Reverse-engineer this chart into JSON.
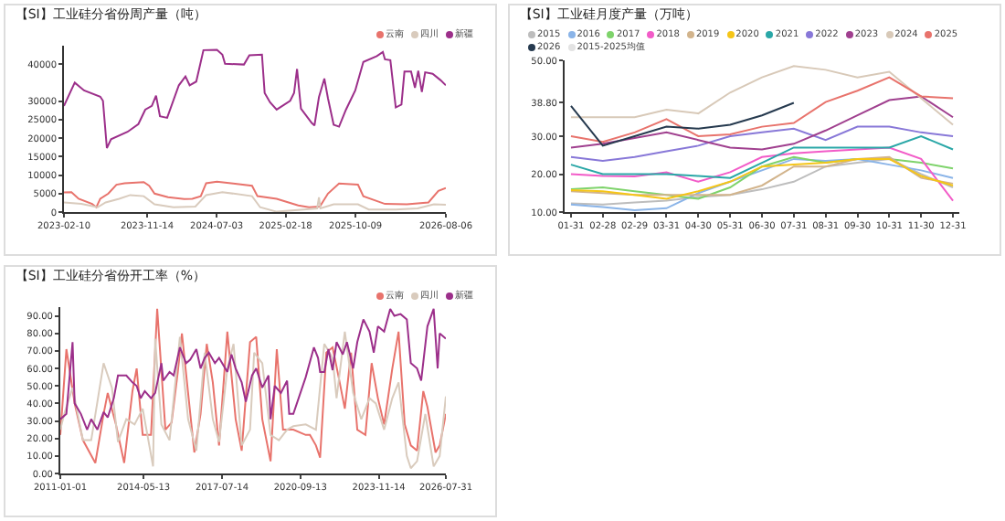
{
  "chart_data": [
    {
      "type": "line",
      "title": "【SI】工业硅分省份周产量（吨）",
      "legend": "top right",
      "xlim": [
        "2023-02-10",
        "2026-08-06"
      ],
      "xticks": [
        {
          "value": "2023-02-10",
          "label": "2023-02-10"
        },
        {
          "value": "2023-11-14",
          "label": "2023-11-14"
        },
        {
          "value": "2024-07-03",
          "label": "2024-07-03"
        },
        {
          "value": "2025-02-18",
          "label": "2025-02-18"
        },
        {
          "value": "2025-10-09",
          "label": "2025-10-09"
        },
        {
          "value": "2026-08-06",
          "label": "2026-08-06"
        }
      ],
      "ylim": [
        0,
        45000
      ],
      "yticks": [
        0,
        5000,
        10000,
        15000,
        20000,
        25000,
        30000,
        40000
      ],
      "series": [
        {
          "name": "云南",
          "color": "#e8736c",
          "x": [
            "2023-02-10",
            "2023-03-07",
            "2023-03-31",
            "2023-05-15",
            "2023-05-29",
            "2023-06-11",
            "2023-07-08",
            "2023-08-04",
            "2023-08-31",
            "2023-11-03",
            "2023-11-21",
            "2023-12-09",
            "2024-01-23",
            "2024-03-17",
            "2024-04-13",
            "2024-05-11",
            "2024-05-29",
            "2024-07-04",
            "2024-08-27",
            "2024-10-29",
            "2024-11-16",
            "2025-01-19",
            "2025-04-01",
            "2025-05-07",
            "2025-06-12",
            "2025-07-09",
            "2025-08-15",
            "2025-10-17",
            "2025-11-04",
            "2026-01-15",
            "2026-03-29",
            "2026-06-09",
            "2026-07-12",
            "2026-08-06"
          ],
          "values": [
            5300,
            5400,
            3600,
            2200,
            1300,
            3600,
            5000,
            7400,
            7800,
            8100,
            7100,
            5000,
            4000,
            3500,
            3600,
            4300,
            7800,
            8200,
            7700,
            7100,
            4300,
            3600,
            1800,
            1300,
            1500,
            5000,
            7700,
            7400,
            4300,
            2200,
            2100,
            2600,
            5700,
            6500
          ]
        },
        {
          "name": "四川",
          "color": "#d9cbbd",
          "x": [
            "2023-02-10",
            "2023-04-09",
            "2023-06-02",
            "2023-06-29",
            "2023-08-13",
            "2023-09-19",
            "2023-11-03",
            "2023-12-09",
            "2024-02-10",
            "2024-04-23",
            "2024-05-29",
            "2024-07-22",
            "2024-10-29",
            "2024-11-25",
            "2025-01-19",
            "2025-04-19",
            "2025-06-03",
            "2025-06-09",
            "2025-06-14",
            "2025-07-28",
            "2025-10-17",
            "2025-11-22",
            "2026-02-20",
            "2026-05-04",
            "2026-06-27",
            "2026-08-06"
          ],
          "values": [
            2600,
            2200,
            1300,
            2600,
            3600,
            4600,
            4300,
            2100,
            1300,
            1500,
            4600,
            5400,
            4300,
            1300,
            100,
            700,
            1000,
            4000,
            1000,
            2100,
            2100,
            700,
            700,
            1000,
            2100,
            2000
          ]
        },
        {
          "name": "新疆",
          "color": "#9c2f8a",
          "x": [
            "2023-02-10",
            "2023-03-18",
            "2023-04-18",
            "2023-06-11",
            "2023-06-20",
            "2023-07-03",
            "2023-07-17",
            "2023-09-10",
            "2023-10-16",
            "2023-11-08",
            "2023-11-30",
            "2023-12-14",
            "2023-12-27",
            "2024-01-20",
            "2024-02-28",
            "2024-03-21",
            "2024-04-04",
            "2024-04-26",
            "2024-05-07",
            "2024-05-20",
            "2024-07-04",
            "2024-07-22",
            "2024-07-31",
            "2024-10-02",
            "2024-10-20",
            "2024-12-01",
            "2024-12-10",
            "2024-12-28",
            "2025-01-19",
            "2025-03-05",
            "2025-03-18",
            "2025-03-28",
            "2025-04-10",
            "2025-05-16",
            "2025-05-25",
            "2025-06-09",
            "2025-06-27",
            "2025-07-09",
            "2025-07-28",
            "2025-08-15",
            "2025-09-07",
            "2025-10-08",
            "2025-11-04",
            "2025-12-19",
            "2026-01-08",
            "2026-01-15",
            "2026-02-02",
            "2026-02-20",
            "2026-03-11",
            "2026-03-21",
            "2026-04-12",
            "2026-04-25",
            "2026-05-06",
            "2026-05-18",
            "2026-05-29",
            "2026-06-23",
            "2026-07-19",
            "2026-08-06"
          ],
          "values": [
            28700,
            35000,
            32900,
            31200,
            30100,
            17300,
            19700,
            21700,
            23800,
            27700,
            28700,
            31500,
            25900,
            25500,
            34300,
            36700,
            34300,
            35300,
            39200,
            43800,
            43900,
            42600,
            40100,
            39900,
            42400,
            42600,
            32200,
            29700,
            27700,
            30100,
            32200,
            38700,
            28000,
            24100,
            23400,
            31100,
            36100,
            30800,
            23600,
            23100,
            27700,
            32900,
            40600,
            42200,
            43300,
            41300,
            41100,
            28300,
            29100,
            38000,
            38000,
            33600,
            38200,
            32500,
            37800,
            37400,
            35700,
            34300
          ]
        }
      ]
    },
    {
      "type": "line",
      "title": "【SI】工业硅月度产量（万吨）",
      "legend": "top left",
      "categories": [
        "01-31",
        "02-28",
        "02-29",
        "03-31",
        "04-30",
        "05-31",
        "06-30",
        "07-31",
        "08-31",
        "09-30",
        "10-31",
        "11-30",
        "12-31"
      ],
      "ylim": [
        10,
        50
      ],
      "yticks": [
        {
          "value": 10,
          "label": "10.00"
        },
        {
          "value": 20,
          "label": "20.00"
        },
        {
          "value": 30,
          "label": "30.00"
        },
        {
          "value": 38.8,
          "label": "38.80"
        },
        {
          "value": 50,
          "label": "50.00"
        }
      ],
      "series": [
        {
          "name": "2015",
          "color": "#bdbdbd",
          "values": [
            12.3,
            12,
            12.5,
            13,
            14,
            14.5,
            16,
            18,
            22,
            23,
            24,
            20,
            16.5
          ]
        },
        {
          "name": "2016",
          "color": "#8ab4e8",
          "values": [
            12,
            11.3,
            10.5,
            11,
            15,
            18,
            21,
            24,
            23.5,
            24,
            22.5,
            21,
            19
          ]
        },
        {
          "name": "2017",
          "color": "#7ed36b",
          "values": [
            16,
            16.5,
            15.5,
            14.5,
            13.5,
            16.5,
            22,
            24.5,
            23,
            24,
            24,
            23,
            21.5
          ]
        },
        {
          "name": "2018",
          "color": "#f25cc8",
          "values": [
            20,
            19.5,
            19.4,
            20.5,
            18,
            20.5,
            24.5,
            25.5,
            26,
            26.5,
            27,
            24,
            13
          ]
        },
        {
          "name": "2019",
          "color": "#d2b48c",
          "values": [
            15.5,
            15,
            14.5,
            14.5,
            14.5,
            14.5,
            17,
            22,
            22,
            24,
            24.5,
            19,
            17.5
          ]
        },
        {
          "name": "2020",
          "color": "#f5c518",
          "values": [
            15.8,
            15.5,
            14.5,
            13.5,
            15.5,
            18,
            22,
            22.5,
            23,
            24,
            24,
            19.5,
            17
          ]
        },
        {
          "name": "2021",
          "color": "#2aa7a7",
          "values": [
            22.5,
            20,
            20,
            20,
            19.5,
            19,
            23,
            27,
            27,
            27,
            27,
            30,
            26.5
          ]
        },
        {
          "name": "2022",
          "color": "#8878d8",
          "values": [
            24.5,
            23.5,
            24.5,
            26,
            27.5,
            30,
            31,
            32,
            29,
            32.5,
            32.5,
            31,
            30
          ]
        },
        {
          "name": "2023",
          "color": "#a0408f",
          "values": [
            27,
            28,
            29.5,
            31,
            29,
            27,
            26.5,
            28,
            31.5,
            35.5,
            39.5,
            40.5,
            35
          ]
        },
        {
          "name": "2024",
          "color": "#d8c9b8",
          "values": [
            35,
            35,
            35,
            37,
            36,
            41.5,
            45.5,
            48.5,
            47.5,
            45.5,
            47,
            40,
            33
          ]
        },
        {
          "name": "2025",
          "color": "#e8736c",
          "values": [
            30,
            28.5,
            31,
            34.5,
            30,
            30.5,
            32.5,
            33.5,
            39,
            42,
            45.5,
            40.5,
            40
          ]
        },
        {
          "name": "2026",
          "color": "#263a4f",
          "values": [
            38,
            27.5,
            30,
            32.5,
            32,
            33,
            35.5,
            38.8,
            null,
            null,
            null,
            null,
            null
          ]
        },
        {
          "name": "2015-2025均值",
          "color": "#e3e3e3",
          "values": [
            null,
            null,
            null,
            null,
            null,
            null,
            null,
            null,
            null,
            null,
            null,
            null,
            null
          ]
        }
      ]
    },
    {
      "type": "line",
      "title": "【SI】工业硅分省份开工率（%）",
      "legend": "top right",
      "xlim": [
        "2011-01-01",
        "2026-07-31"
      ],
      "xticks": [
        {
          "value": "2011-01-01",
          "label": "2011-01-01"
        },
        {
          "value": "2014-05-13",
          "label": "2014-05-13"
        },
        {
          "value": "2017-07-14",
          "label": "2017-07-14"
        },
        {
          "value": "2020-09-13",
          "label": "2020-09-13"
        },
        {
          "value": "2023-11-14",
          "label": "2023-11-14"
        },
        {
          "value": "2026-07-31",
          "label": "2026-07-31"
        }
      ],
      "ylim": [
        0,
        95
      ],
      "yticks": [
        {
          "value": 0,
          "label": "0.00"
        },
        {
          "value": 10,
          "label": "10.00"
        },
        {
          "value": 20,
          "label": "20.00"
        },
        {
          "value": 30,
          "label": "30.00"
        },
        {
          "value": 40,
          "label": "40.00"
        },
        {
          "value": 50,
          "label": "50.00"
        },
        {
          "value": 60,
          "label": "60.00"
        },
        {
          "value": 70,
          "label": "70.00"
        },
        {
          "value": 80,
          "label": "80.00"
        },
        {
          "value": 90,
          "label": "90.00"
        }
      ],
      "series": [
        {
          "name": "云南",
          "color": "#e8736c",
          "x": [
            "2011-01",
            "2011-04",
            "2011-08",
            "2011-12",
            "2012-06",
            "2012-10",
            "2012-12",
            "2013-04",
            "2013-08",
            "2013-12",
            "2014-02",
            "2014-05",
            "2014-09",
            "2014-12",
            "2015-04",
            "2015-07",
            "2015-10",
            "2015-12",
            "2016-03",
            "2016-06",
            "2016-09",
            "2016-12",
            "2017-03",
            "2017-06",
            "2017-10",
            "2018-02",
            "2018-05",
            "2018-09",
            "2018-12",
            "2019-03",
            "2019-07",
            "2019-10",
            "2020-01",
            "2020-06",
            "2020-12",
            "2021-02",
            "2021-05",
            "2021-07",
            "2021-10",
            "2022-01",
            "2022-04",
            "2022-07",
            "2022-10",
            "2023-01",
            "2023-05",
            "2023-08",
            "2023-11",
            "2024-02",
            "2024-06",
            "2024-09",
            "2024-12",
            "2025-03",
            "2025-06",
            "2025-09",
            "2025-11",
            "2026-03",
            "2026-05",
            "2026-07-31"
          ],
          "values": [
            22,
            71,
            40,
            19,
            6,
            34,
            46,
            28,
            6,
            47,
            60,
            22,
            22,
            94,
            25,
            29,
            58,
            80,
            46,
            12,
            34,
            74,
            52,
            16,
            81,
            31,
            13,
            75,
            78,
            31,
            7,
            71,
            25,
            25,
            22,
            22,
            16,
            9,
            69,
            72,
            55,
            37,
            69,
            25,
            22,
            63,
            43,
            28,
            60,
            81,
            28,
            16,
            13,
            47,
            38,
            12,
            16,
            34
          ]
        },
        {
          "name": "四川",
          "color": "#d9cbbd",
          "x": [
            "2011-01",
            "2011-03",
            "2011-07",
            "2011-12",
            "2012-04",
            "2012-10",
            "2013-02",
            "2013-05",
            "2013-09",
            "2014-01",
            "2014-05",
            "2014-10",
            "2014-11",
            "2015-02",
            "2015-06",
            "2015-11",
            "2016-03",
            "2016-07",
            "2016-11",
            "2017-03",
            "2017-06",
            "2017-10",
            "2018-01",
            "2018-05",
            "2018-09",
            "2018-11",
            "2019-03",
            "2019-07",
            "2019-11",
            "2020-03",
            "2020-06",
            "2020-12",
            "2021-05",
            "2021-09",
            "2022-01",
            "2022-03",
            "2022-07",
            "2022-11",
            "2023-03",
            "2023-07",
            "2023-10",
            "2024-02",
            "2024-06",
            "2024-09",
            "2025-01",
            "2025-03",
            "2025-06",
            "2025-10",
            "2026-02",
            "2026-05",
            "2026-07-31"
          ],
          "values": [
            25,
            34,
            49,
            19,
            19,
            63,
            49,
            18,
            31,
            28,
            37,
            4,
            77,
            28,
            19,
            78,
            31,
            13,
            69,
            31,
            18,
            60,
            74,
            16,
            25,
            69,
            63,
            22,
            19,
            25,
            27,
            28,
            25,
            74,
            66,
            43,
            81,
            46,
            31,
            43,
            40,
            25,
            43,
            52,
            10,
            3,
            7,
            34,
            4,
            10,
            44
          ]
        },
        {
          "name": "新疆",
          "color": "#9c2f8a",
          "x": [
            "2011-01",
            "2011-04",
            "2011-07",
            "2011-08",
            "2011-11",
            "2012-02",
            "2012-04",
            "2012-07",
            "2012-10",
            "2012-12",
            "2013-03",
            "2013-05",
            "2013-09",
            "2013-12",
            "2014-02",
            "2014-04",
            "2014-06",
            "2014-09",
            "2014-11",
            "2015-02",
            "2015-03",
            "2015-06",
            "2015-08",
            "2015-11",
            "2016-02",
            "2016-04",
            "2016-07",
            "2016-09",
            "2016-11",
            "2017-01",
            "2017-04",
            "2017-06",
            "2017-10",
            "2017-12",
            "2018-02",
            "2018-05",
            "2018-07",
            "2018-10",
            "2018-12",
            "2019-03",
            "2019-06",
            "2019-07",
            "2019-09",
            "2019-12",
            "2020-03",
            "2020-04",
            "2020-06",
            "2020-12",
            "2021-04",
            "2021-06",
            "2021-07",
            "2021-09",
            "2021-11",
            "2022-01",
            "2022-03",
            "2022-06",
            "2022-08",
            "2022-11",
            "2023-01",
            "2023-04",
            "2023-07",
            "2023-09",
            "2023-11",
            "2024-02",
            "2024-05",
            "2024-07",
            "2024-10",
            "2025-01",
            "2025-03",
            "2025-06",
            "2025-08",
            "2025-11",
            "2026-02",
            "2026-04",
            "2026-05",
            "2026-07-31"
          ],
          "values": [
            31,
            34,
            75,
            40,
            34,
            25,
            31,
            25,
            35,
            32,
            43,
            56,
            56,
            52,
            50,
            43,
            47,
            43,
            46,
            63,
            53,
            58,
            56,
            72,
            63,
            65,
            71,
            60,
            66,
            69,
            63,
            66,
            58,
            68,
            60,
            52,
            41,
            56,
            60,
            49,
            56,
            31,
            50,
            46,
            53,
            34,
            34,
            55,
            72,
            66,
            58,
            58,
            71,
            59,
            75,
            68,
            75,
            60,
            75,
            88,
            81,
            69,
            84,
            81,
            94,
            90,
            91,
            88,
            63,
            60,
            53,
            84,
            94,
            60,
            80,
            77
          ]
        }
      ]
    }
  ]
}
